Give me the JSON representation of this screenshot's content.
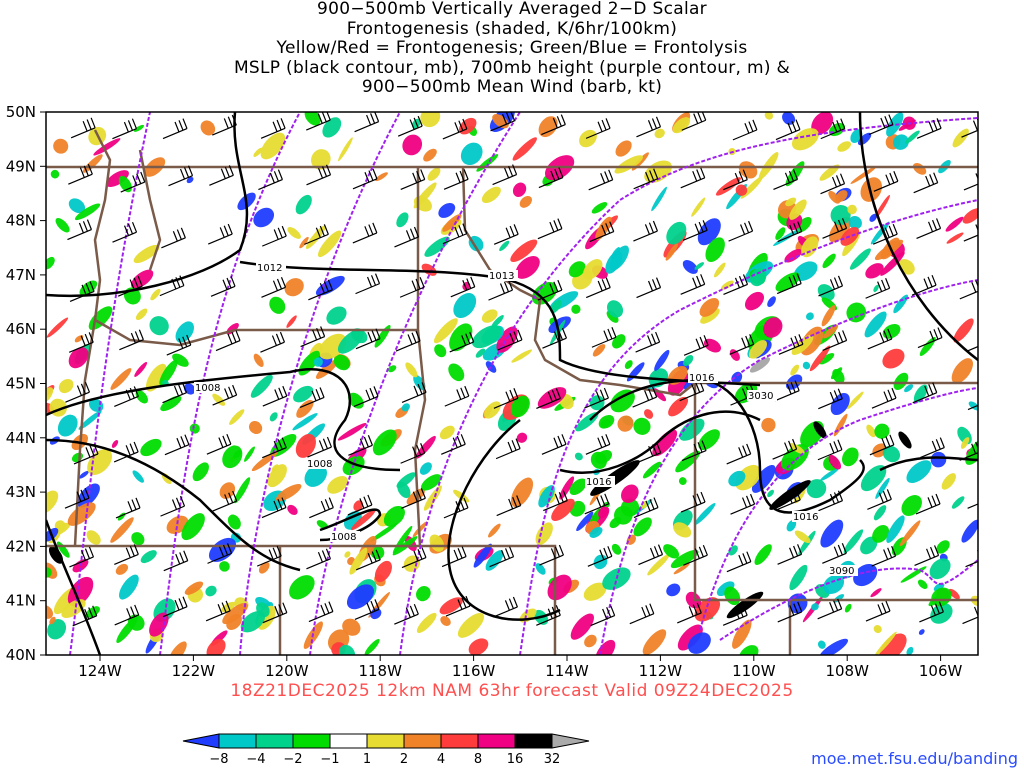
{
  "title_lines": [
    "900−500mb Vertically Averaged 2−D Scalar",
    "Frontogenesis (shaded, K/6hr/100km)",
    "Yellow/Red = Frontogenesis;  Green/Blue = Frontolysis",
    "MSLP (black contour, mb), 700mb height (purple contour, m) &",
    "900−500mb Mean Wind (barb, kt)"
  ],
  "lat_labels": [
    "50N",
    "49N",
    "48N",
    "47N",
    "46N",
    "45N",
    "44N",
    "43N",
    "42N",
    "41N",
    "40N"
  ],
  "lon_labels": [
    "124W",
    "122W",
    "120W",
    "118W",
    "116W",
    "114W",
    "112W",
    "110W",
    "108W",
    "106W"
  ],
  "contour_labels": {
    "mslp": [
      "1012",
      "1013",
      "1008",
      "1008",
      "1008",
      "1016",
      "1016",
      "1016"
    ],
    "height": [
      "3030",
      "3090"
    ]
  },
  "subtitle": "18Z21DEC2025 12km NAM 63hr forecast Valid 09Z24DEC2025",
  "colorbar": {
    "ticks": [
      "−8",
      "−4",
      "−2",
      "−1",
      "1",
      "2",
      "4",
      "8",
      "16",
      "32"
    ],
    "colors": [
      "#1f3cff",
      "#00c8c8",
      "#00d28c",
      "#00dc00",
      "#ffffff",
      "#e6dc32",
      "#f08228",
      "#ff3c3c",
      "#f00082",
      "#000000",
      "#aaaaaa"
    ]
  },
  "colors": {
    "border": "#7a5a48",
    "purple": "#a020f0",
    "mslp": "#000000"
  },
  "url": "moe.met.fsu.edu/banding"
}
